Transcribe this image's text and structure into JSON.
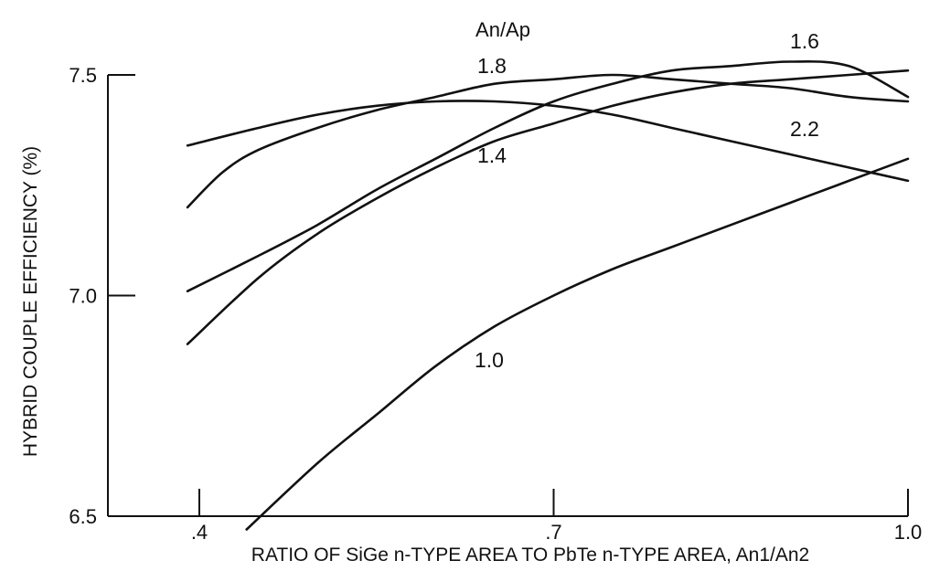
{
  "chart_data": {
    "type": "line",
    "title": "",
    "legend_title": "An/Ap",
    "xlabel": "RATIO OF SiGe n-TYPE AREA TO PbTe n-TYPE AREA, An1/An2",
    "ylabel": "HYBRID COUPLE EFFICIENCY (%)",
    "xlim": [
      0.38,
      1.0
    ],
    "ylim": [
      6.5,
      7.5
    ],
    "x_ticks": [
      0.4,
      0.7,
      1.0
    ],
    "x_tick_labels": [
      ".4",
      ".7",
      "1.0"
    ],
    "y_ticks": [
      6.5,
      7.0,
      7.5
    ],
    "y_tick_labels": [
      "6.5",
      "7.0",
      "7.5"
    ],
    "grid": false,
    "series": [
      {
        "name": "1.0",
        "x": [
          0.44,
          0.5,
          0.55,
          0.6,
          0.65,
          0.7,
          0.75,
          0.8,
          0.85,
          0.9,
          0.95,
          1.0
        ],
        "y": [
          6.47,
          6.62,
          6.73,
          6.84,
          6.93,
          7.0,
          7.06,
          7.11,
          7.16,
          7.21,
          7.26,
          7.31
        ]
      },
      {
        "name": "1.4",
        "x": [
          0.39,
          0.45,
          0.5,
          0.55,
          0.6,
          0.65,
          0.7,
          0.75,
          0.8,
          0.85,
          0.9,
          0.95,
          1.0
        ],
        "y": [
          6.89,
          7.04,
          7.14,
          7.22,
          7.29,
          7.35,
          7.39,
          7.43,
          7.46,
          7.48,
          7.49,
          7.5,
          7.51
        ]
      },
      {
        "name": "1.6",
        "x": [
          0.39,
          0.45,
          0.5,
          0.55,
          0.6,
          0.65,
          0.7,
          0.75,
          0.8,
          0.85,
          0.9,
          0.95,
          1.0
        ],
        "y": [
          7.01,
          7.09,
          7.16,
          7.24,
          7.31,
          7.38,
          7.44,
          7.48,
          7.51,
          7.52,
          7.53,
          7.52,
          7.45
        ]
      },
      {
        "name": "1.8",
        "x": [
          0.39,
          0.42,
          0.45,
          0.5,
          0.55,
          0.6,
          0.65,
          0.7,
          0.75,
          0.8,
          0.85,
          0.9,
          0.95,
          1.0
        ],
        "y": [
          7.2,
          7.28,
          7.33,
          7.38,
          7.42,
          7.45,
          7.48,
          7.49,
          7.5,
          7.49,
          7.48,
          7.47,
          7.45,
          7.44
        ]
      },
      {
        "name": "2.2",
        "x": [
          0.39,
          0.45,
          0.5,
          0.55,
          0.6,
          0.65,
          0.7,
          0.75,
          0.8,
          0.85,
          0.9,
          0.95,
          1.0
        ],
        "y": [
          7.34,
          7.38,
          7.41,
          7.43,
          7.44,
          7.44,
          7.43,
          7.41,
          7.38,
          7.35,
          7.32,
          7.29,
          7.26
        ]
      }
    ]
  }
}
